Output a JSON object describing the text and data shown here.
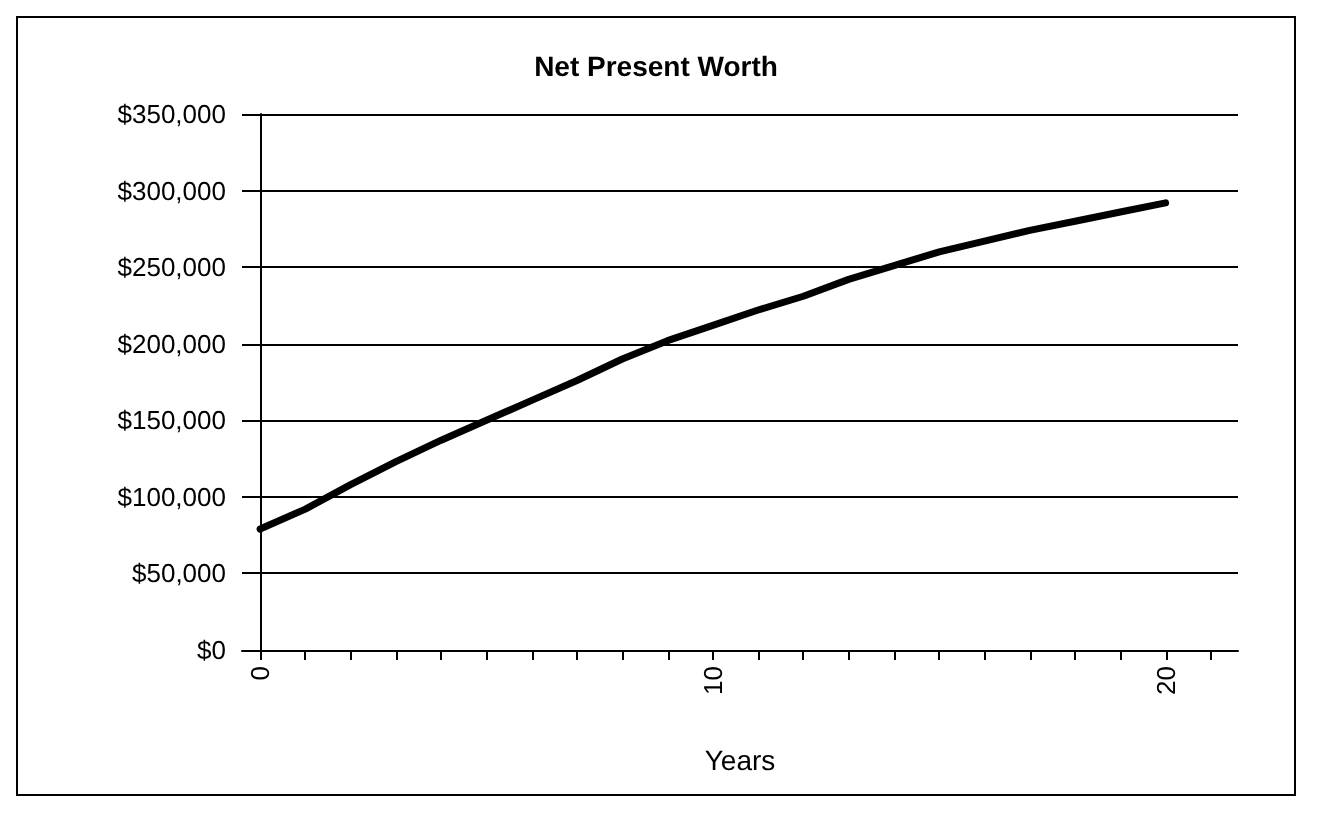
{
  "chart_data": {
    "type": "line",
    "title": "Net Present Worth",
    "xlabel": "Years",
    "x": [
      0,
      1,
      2,
      3,
      4,
      5,
      6,
      7,
      8,
      9,
      10,
      11,
      12,
      13,
      14,
      15,
      16,
      17,
      18,
      19,
      20
    ],
    "series": [
      {
        "color": "#000000",
        "values": [
          79000,
          92000,
          108000,
          123000,
          137000,
          150000,
          163000,
          176000,
          190000,
          202000,
          212000,
          222000,
          231000,
          242000,
          251000,
          260000,
          267000,
          274000,
          280000,
          286000,
          292000
        ]
      }
    ],
    "xlim": [
      -0.4,
      21.6
    ],
    "xticks": [
      0,
      {
        "value": 1,
        "label": null
      },
      {
        "value": 2,
        "label": null
      },
      {
        "value": 3,
        "label": null
      },
      {
        "value": 4,
        "label": null
      },
      {
        "value": 5,
        "label": null
      },
      {
        "value": 6,
        "label": null
      },
      {
        "value": 7,
        "label": null
      },
      {
        "value": 8,
        "label": null
      },
      {
        "value": 9,
        "label": null
      },
      10,
      {
        "value": 11,
        "label": null
      },
      {
        "value": 12,
        "label": null
      },
      {
        "value": 13,
        "label": null
      },
      {
        "value": 14,
        "label": null
      },
      {
        "value": 15,
        "label": null
      },
      {
        "value": 16,
        "label": null
      },
      {
        "value": 17,
        "label": null
      },
      {
        "value": 18,
        "label": null
      },
      {
        "value": 19,
        "label": null
      },
      20,
      {
        "value": 21,
        "label": null
      }
    ],
    "ylim": [
      0,
      350000
    ],
    "yticks": [
      {
        "value": 0,
        "label": "$0"
      },
      {
        "value": 50000,
        "label": "$50,000"
      },
      {
        "value": 100000,
        "label": "$100,000"
      },
      {
        "value": 150000,
        "label": "$150,000"
      },
      {
        "value": 200000,
        "label": "$200,000"
      },
      {
        "value": 250000,
        "label": "$250,000"
      },
      {
        "value": 300000,
        "label": "$300,000"
      },
      {
        "value": 350000,
        "label": "$350,000"
      }
    ],
    "grid": "y",
    "marker": "none",
    "line_style": "solid"
  }
}
